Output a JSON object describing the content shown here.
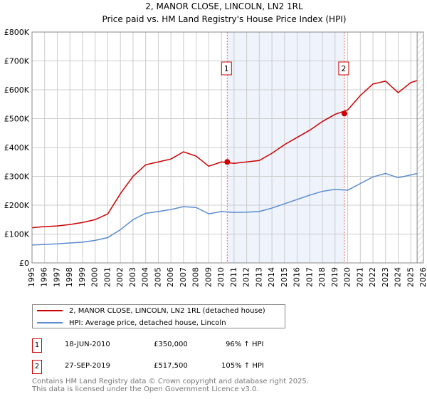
{
  "chart_data": {
    "type": "line",
    "title": "2, MANOR CLOSE, LINCOLN, LN2 1RL",
    "subtitle": "Price paid vs. HM Land Registry's House Price Index (HPI)",
    "xlim": [
      1995,
      2026
    ],
    "ylim": [
      0,
      800000
    ],
    "x_ticks": [
      "1995",
      "1996",
      "1997",
      "1998",
      "1999",
      "2000",
      "2001",
      "2002",
      "2003",
      "2004",
      "2005",
      "2006",
      "2007",
      "2008",
      "2009",
      "2010",
      "2011",
      "2012",
      "2013",
      "2014",
      "2015",
      "2016",
      "2017",
      "2018",
      "2019",
      "2020",
      "2021",
      "2022",
      "2023",
      "2024",
      "2025",
      "2026"
    ],
    "y_ticks": [
      {
        "v": 0,
        "label": "£0"
      },
      {
        "v": 100000,
        "label": "£100K"
      },
      {
        "v": 200000,
        "label": "£200K"
      },
      {
        "v": 300000,
        "label": "£300K"
      },
      {
        "v": 400000,
        "label": "£400K"
      },
      {
        "v": 500000,
        "label": "£500K"
      },
      {
        "v": 600000,
        "label": "£600K"
      },
      {
        "v": 700000,
        "label": "£700K"
      },
      {
        "v": 800000,
        "label": "£800K"
      }
    ],
    "x": [
      1995,
      1996,
      1997,
      1998,
      1999,
      2000,
      2001,
      2002,
      2003,
      2004,
      2005,
      2006,
      2007,
      2008,
      2009,
      2010,
      2011,
      2012,
      2013,
      2014,
      2015,
      2016,
      2017,
      2018,
      2019,
      2020,
      2021,
      2022,
      2023,
      2024,
      2025,
      2025.5
    ],
    "series": [
      {
        "name": "2, MANOR CLOSE, LINCOLN, LN2 1RL (detached house)",
        "color": "#cc0000",
        "values": [
          122000,
          126000,
          128000,
          133000,
          140000,
          150000,
          170000,
          240000,
          300000,
          340000,
          350000,
          360000,
          385000,
          370000,
          335000,
          350000,
          345000,
          350000,
          355000,
          380000,
          410000,
          435000,
          460000,
          490000,
          515000,
          530000,
          580000,
          620000,
          630000,
          590000,
          625000,
          632000
        ]
      },
      {
        "name": "HPI: Average price, detached house, Lincoln",
        "color": "#5b8bd0",
        "values": [
          62000,
          64000,
          66000,
          69000,
          72000,
          78000,
          88000,
          115000,
          150000,
          172000,
          178000,
          185000,
          195000,
          192000,
          170000,
          178000,
          175000,
          176000,
          178000,
          190000,
          205000,
          220000,
          235000,
          248000,
          255000,
          252000,
          275000,
          298000,
          310000,
          295000,
          305000,
          310000
        ]
      }
    ],
    "sales": [
      {
        "n": "1",
        "x": 2010.46,
        "price": 350000,
        "date": "18-JUN-2010",
        "price_label": "£350,000",
        "hpi": "96% ↑ HPI"
      },
      {
        "n": "2",
        "x": 2019.74,
        "price": 517500,
        "date": "27-SEP-2019",
        "price_label": "£517,500",
        "hpi": "105% ↑ HPI"
      }
    ],
    "forecast_start": 2025.5,
    "grid": true,
    "legend": "bottom"
  },
  "footer": {
    "line1": "Contains HM Land Registry data © Crown copyright and database right 2025.",
    "line2": "This data is licensed under the Open Government Licence v3.0."
  }
}
